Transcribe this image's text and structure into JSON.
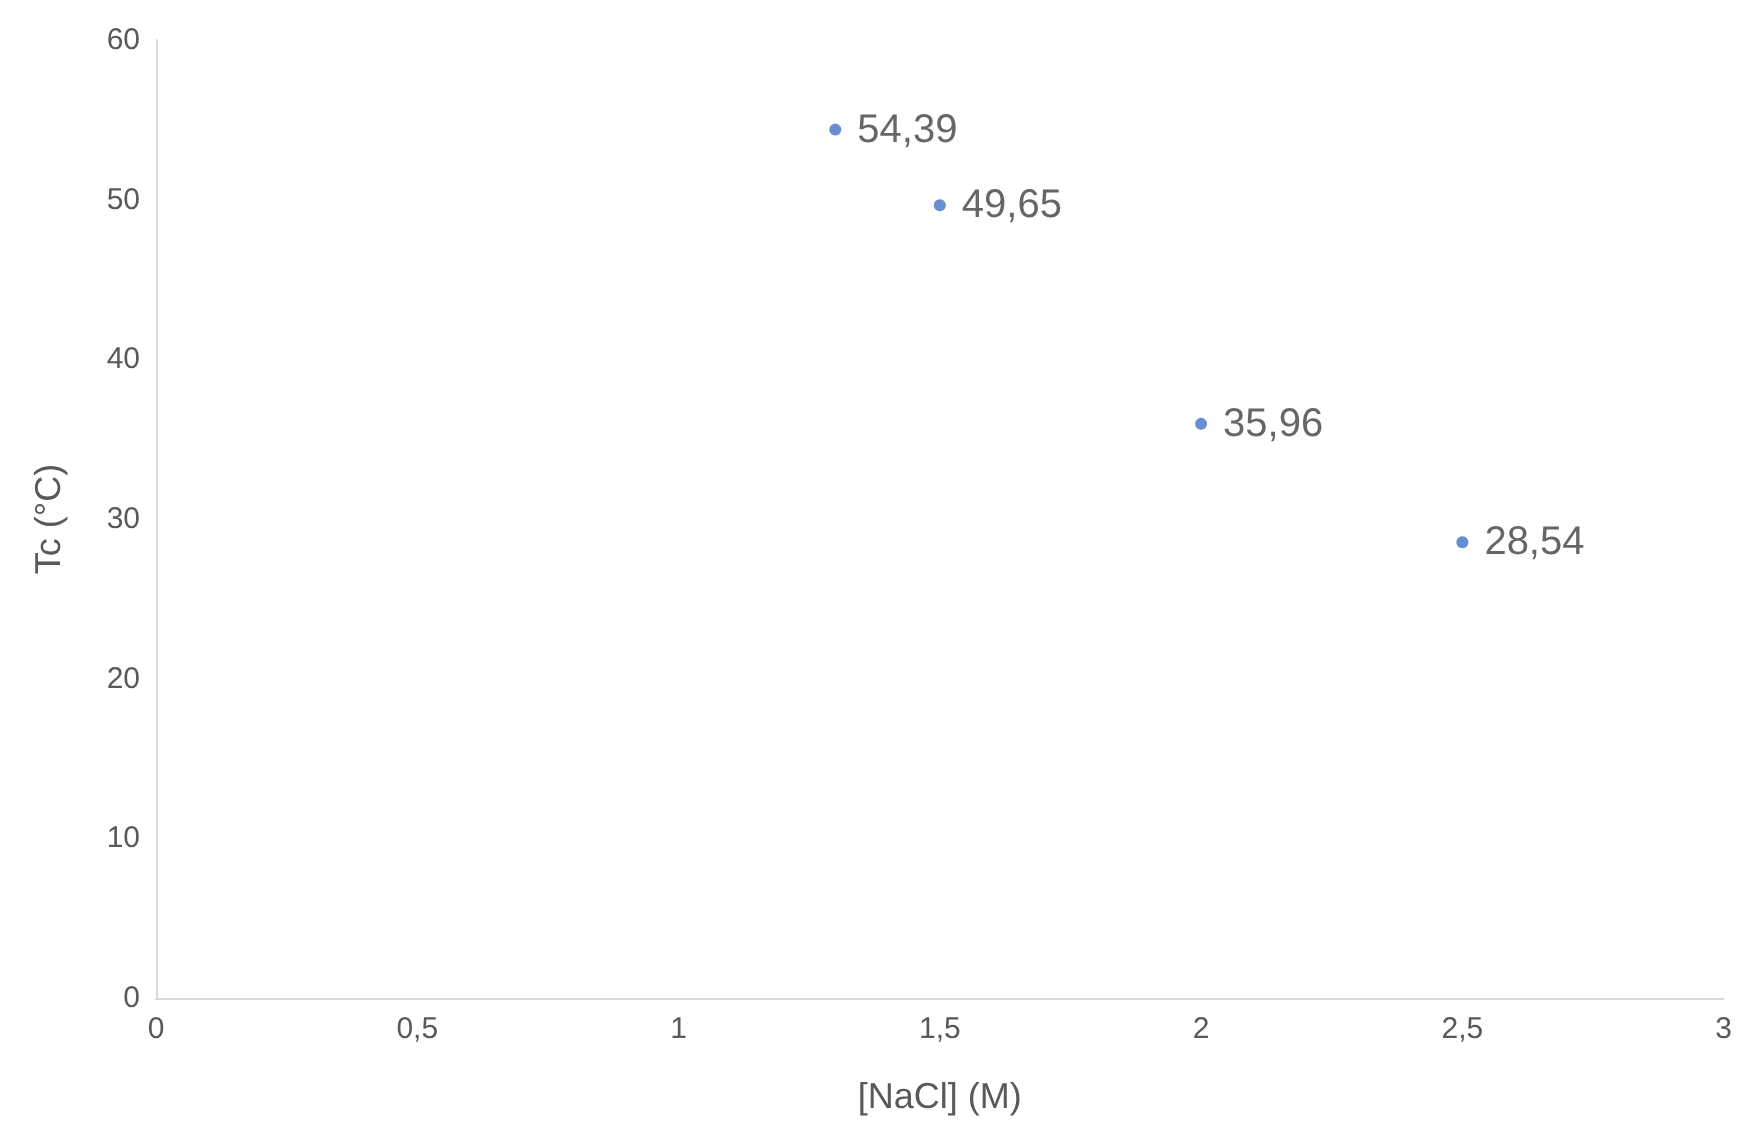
{
  "chart_data": {
    "type": "scatter",
    "xlabel": "[NaCl] (M)",
    "ylabel": "Tc (°C)",
    "x": [
      1.3,
      1.5,
      2,
      2.5
    ],
    "values": [
      54.39,
      49.65,
      35.96,
      28.54
    ],
    "value_labels": [
      "54,39",
      "49,65",
      "35,96",
      "28,54"
    ],
    "color": "#4472c4",
    "marker": "circle",
    "xlim": [
      0,
      3
    ],
    "xticks": [
      0,
      {
        "value": 0.5,
        "label": "0,5"
      },
      1,
      {
        "value": 1.5,
        "label": "1,5"
      },
      2,
      {
        "value": 2.5,
        "label": "2,5"
      },
      3
    ],
    "ylim": [
      0,
      60
    ],
    "yticks": [
      0,
      10,
      20,
      30,
      40,
      50,
      60
    ]
  }
}
